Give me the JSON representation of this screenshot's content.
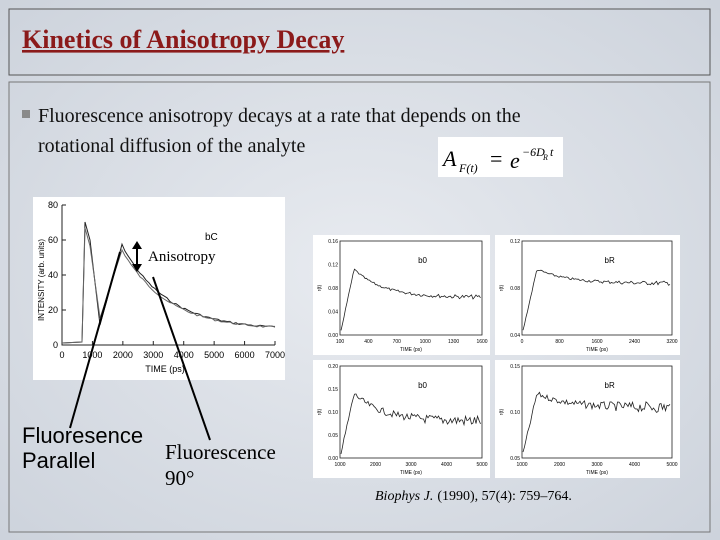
{
  "header": {
    "title": "Kinetics of Anisotropy Decay"
  },
  "bullet": {
    "lines": [
      "Fluorescence anisotropy decays at a rate that depends on the",
      "rotational diffusion of the analyte"
    ]
  },
  "equation": {
    "symbol": "A",
    "subscript": "F(t)",
    "equals": "=",
    "base": "e",
    "exponent": "−6D",
    "exponent_subscript": "R",
    "exponent_t": "t"
  },
  "figures": {
    "intensity": {
      "label": "bC",
      "x_title": "TIME (ps)",
      "y_title": "INTENSITY (arb. units)",
      "xticks": [
        "0",
        "1000",
        "2000",
        "3000",
        "4000",
        "5000",
        "6000",
        "7000"
      ],
      "yticks": [
        "0",
        "20",
        "40",
        "60",
        "80"
      ]
    },
    "panels": [
      {
        "label": "b0",
        "x_title": "TIME (ps)",
        "y_title": "r(t)",
        "xticks": [
          "100",
          "400",
          "700",
          "1000",
          "1300",
          "1600"
        ],
        "yticks": [
          "0.00",
          "0.04",
          "0.08",
          "0.12",
          "0.16"
        ]
      },
      {
        "label": "bR",
        "x_title": "TIME (ps)",
        "y_title": "r(t)",
        "xticks": [
          "0",
          "800",
          "1600",
          "2400",
          "3200"
        ],
        "yticks": [
          "0.04",
          "0.08",
          "0.12"
        ]
      },
      {
        "label": "b0",
        "x_title": "TIME (ps)",
        "y_title": "r(t)",
        "xticks": [
          "1000",
          "2000",
          "3000",
          "4000",
          "5000"
        ],
        "yticks": [
          "0.00",
          "0.05",
          "0.10",
          "0.15",
          "0.20"
        ]
      },
      {
        "label": "bR",
        "x_title": "TIME (ps)",
        "y_title": "r(t)",
        "xticks": [
          "1000",
          "2000",
          "3000",
          "4000",
          "5000"
        ],
        "yticks": [
          "0.05",
          "0.10",
          "0.15"
        ]
      }
    ]
  },
  "annotations": {
    "anisotropy": "Anisotropy",
    "parallel": [
      "Fluoresence",
      "Parallel"
    ],
    "perpendicular": [
      "Fluorescence",
      "90°"
    ]
  },
  "citation": {
    "journal": "Biophys J.",
    "details": "(1990), 57(4): 759–764."
  }
}
